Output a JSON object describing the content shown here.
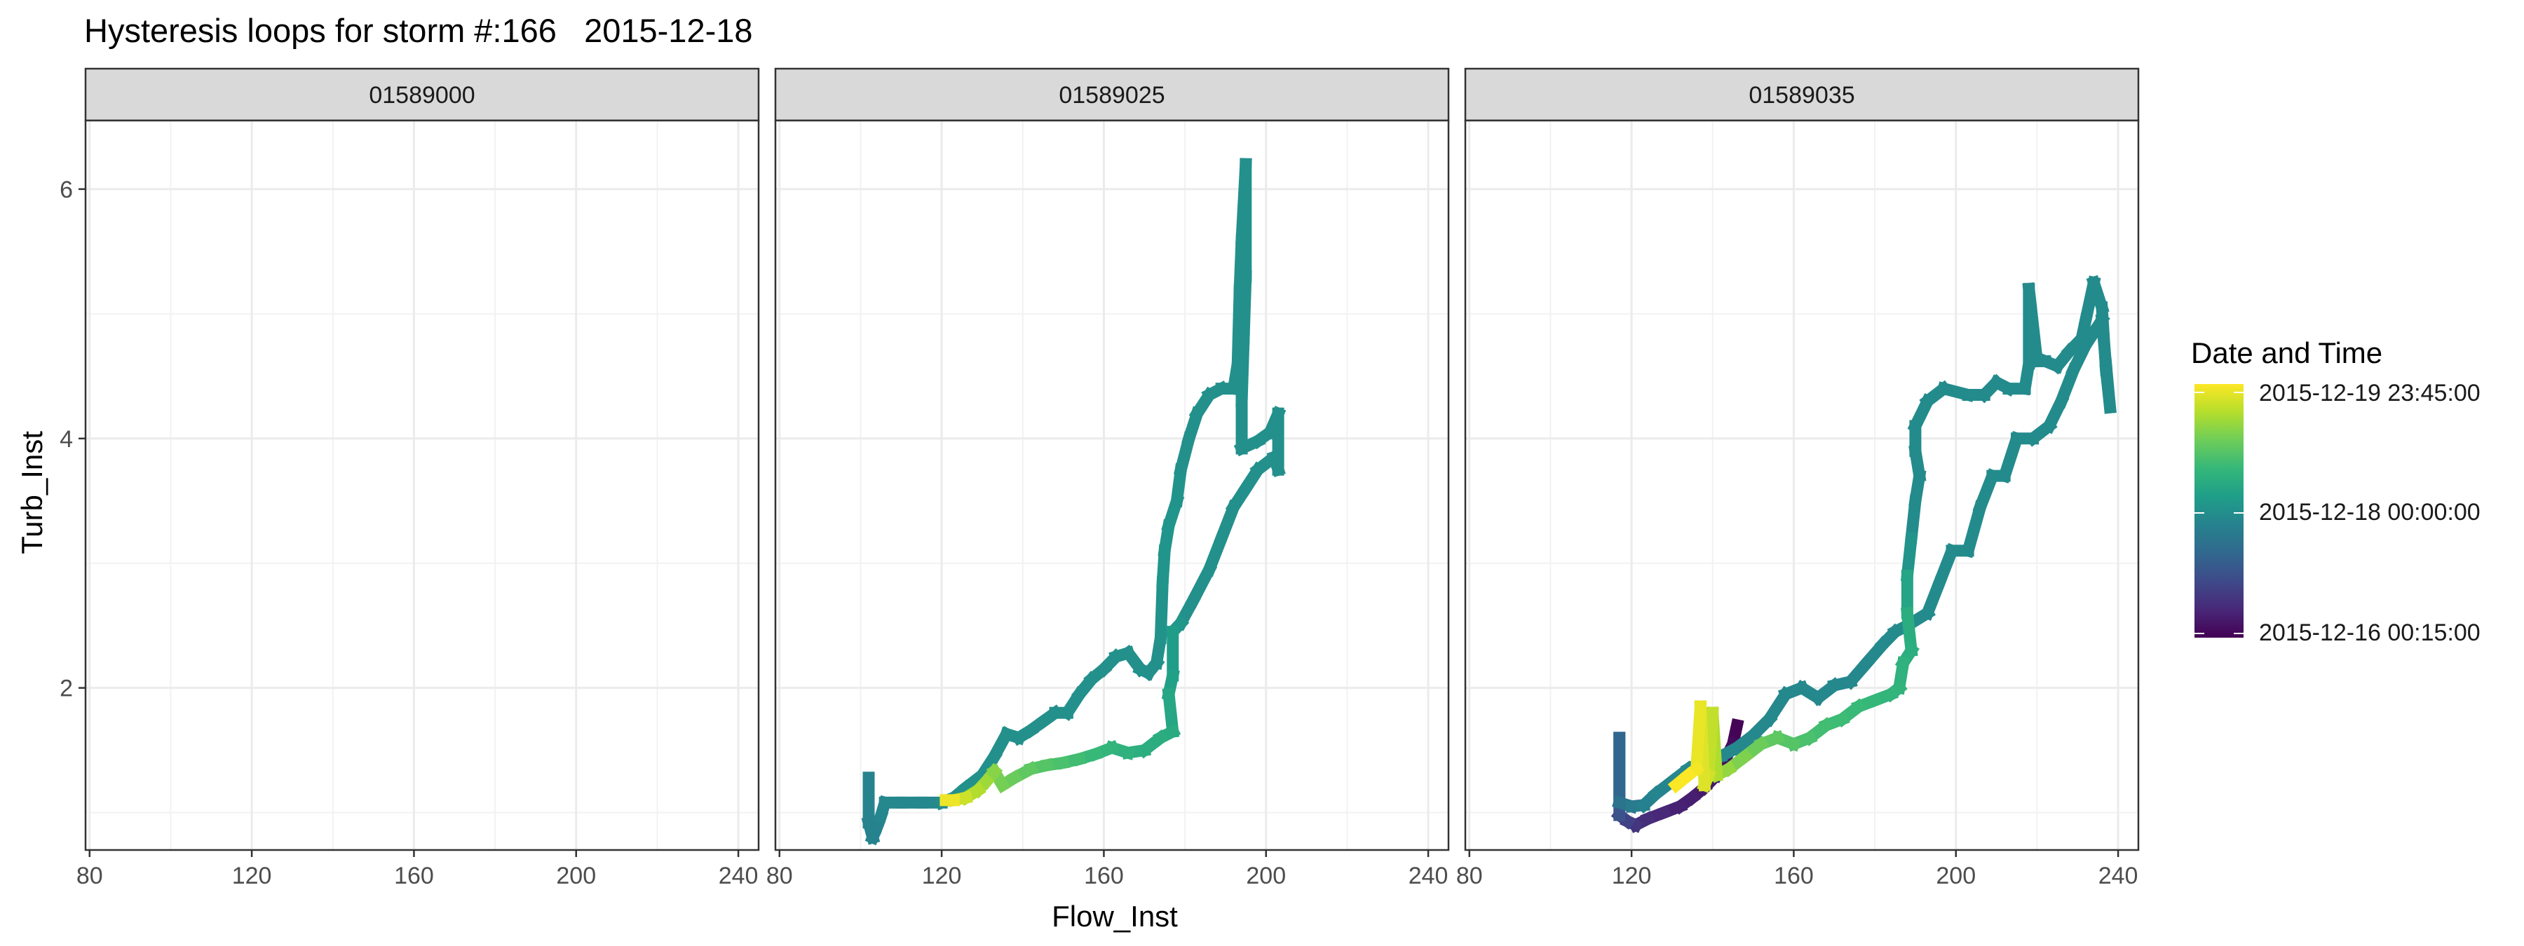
{
  "chart_data": {
    "type": "line",
    "title": "Hysteresis loops for storm #:166   2015-12-18",
    "xlabel": "Flow_Inst",
    "ylabel": "Turb_Inst",
    "xlim": [
      79,
      245
    ],
    "ylim": [
      0.7,
      6.55
    ],
    "xticks": [
      80,
      120,
      160,
      200,
      240
    ],
    "yticks": [
      2,
      4,
      6
    ],
    "grid": true,
    "facets": [
      "01589000",
      "01589025",
      "01589035"
    ],
    "legend": {
      "title": "Date and Time",
      "position": "right",
      "labels": [
        "2015-12-19 23:45:00",
        "2015-12-18 00:00:00",
        "2015-12-16 00:15:00"
      ],
      "colors": [
        "#FDE725",
        "#B4DE2C",
        "#6DCD59",
        "#35B779",
        "#1F9E89",
        "#26828E",
        "#31688E",
        "#3E4A89",
        "#482878",
        "#440154"
      ]
    },
    "series": [
      {
        "facet": "01589000",
        "points": []
      },
      {
        "facet": "01589025",
        "points": [
          [
            102,
            1.28,
            0.45
          ],
          [
            102,
            0.92,
            0.45
          ],
          [
            103,
            0.8,
            0.45
          ],
          [
            104,
            0.88,
            0.45
          ],
          [
            105,
            0.97,
            0.45
          ],
          [
            106,
            1.08,
            0.47
          ],
          [
            110,
            1.08,
            0.47
          ],
          [
            115,
            1.08,
            0.47
          ],
          [
            120,
            1.08,
            0.47
          ],
          [
            123,
            1.12,
            0.5
          ],
          [
            126,
            1.2,
            0.5
          ],
          [
            130,
            1.3,
            0.5
          ],
          [
            133,
            1.45,
            0.5
          ],
          [
            136,
            1.63,
            0.5
          ],
          [
            139,
            1.6,
            0.5
          ],
          [
            142,
            1.66,
            0.5
          ],
          [
            145,
            1.73,
            0.5
          ],
          [
            148,
            1.8,
            0.5
          ],
          [
            151,
            1.8,
            0.5
          ],
          [
            154,
            1.95,
            0.5
          ],
          [
            157,
            2.07,
            0.5
          ],
          [
            160,
            2.15,
            0.5
          ],
          [
            163,
            2.25,
            0.5
          ],
          [
            166,
            2.28,
            0.5
          ],
          [
            169,
            2.15,
            0.5
          ],
          [
            171,
            2.12,
            0.5
          ],
          [
            173,
            2.2,
            0.5
          ],
          [
            174,
            2.4,
            0.5
          ],
          [
            174.5,
            2.85,
            0.52
          ],
          [
            175,
            3.1,
            0.52
          ],
          [
            176,
            3.3,
            0.52
          ],
          [
            178,
            3.5,
            0.52
          ],
          [
            179,
            3.75,
            0.5
          ],
          [
            181,
            4.0,
            0.5
          ],
          [
            183,
            4.2,
            0.5
          ],
          [
            186,
            4.35,
            0.5
          ],
          [
            189,
            4.4,
            0.5
          ],
          [
            192,
            4.4,
            0.5
          ],
          [
            193,
            4.6,
            0.5
          ],
          [
            193.5,
            5.2,
            0.5
          ],
          [
            194,
            5.6,
            0.5
          ],
          [
            195,
            6.2,
            0.5
          ],
          [
            195,
            5.3,
            0.5
          ],
          [
            194.5,
            4.8,
            0.5
          ],
          [
            194,
            4.3,
            0.5
          ],
          [
            194,
            3.92,
            0.5
          ],
          [
            198,
            3.98,
            0.5
          ],
          [
            201,
            4.05,
            0.5
          ],
          [
            203,
            4.2,
            0.5
          ],
          [
            203,
            3.75,
            0.5
          ],
          [
            202,
            3.85,
            0.5
          ],
          [
            198,
            3.75,
            0.5
          ],
          [
            195,
            3.6,
            0.5
          ],
          [
            192,
            3.45,
            0.5
          ],
          [
            189,
            3.2,
            0.5
          ],
          [
            186,
            2.95,
            0.5
          ],
          [
            182,
            2.7,
            0.5
          ],
          [
            179,
            2.52,
            0.5
          ],
          [
            177,
            2.45,
            0.55
          ],
          [
            177,
            2.1,
            0.55
          ],
          [
            176,
            1.95,
            0.58
          ],
          [
            177,
            1.65,
            0.6
          ],
          [
            174,
            1.6,
            0.62
          ],
          [
            170,
            1.5,
            0.62
          ],
          [
            166,
            1.48,
            0.63
          ],
          [
            162,
            1.52,
            0.65
          ],
          [
            158,
            1.47,
            0.66
          ],
          [
            154,
            1.43,
            0.68
          ],
          [
            150,
            1.4,
            0.7
          ],
          [
            146,
            1.38,
            0.72
          ],
          [
            142,
            1.35,
            0.74
          ],
          [
            138,
            1.28,
            0.76
          ],
          [
            135,
            1.22,
            0.78
          ],
          [
            133,
            1.33,
            0.8
          ],
          [
            131,
            1.25,
            0.84
          ],
          [
            129,
            1.18,
            0.87
          ],
          [
            126,
            1.12,
            0.9
          ],
          [
            123,
            1.1,
            0.95
          ],
          [
            121,
            1.1,
            1.0
          ]
        ]
      },
      {
        "facet": "01589035",
        "points": [
          [
            146,
            1.7,
            0.0
          ],
          [
            145,
            1.55,
            0.02
          ],
          [
            143,
            1.42,
            0.04
          ],
          [
            141,
            1.3,
            0.06
          ],
          [
            138,
            1.2,
            0.07
          ],
          [
            135,
            1.12,
            0.08
          ],
          [
            132,
            1.05,
            0.09
          ],
          [
            128,
            1.0,
            0.1
          ],
          [
            124,
            0.95,
            0.12
          ],
          [
            121,
            0.9,
            0.14
          ],
          [
            119,
            0.93,
            0.17
          ],
          [
            117,
            0.98,
            0.22
          ],
          [
            117,
            1.6,
            0.3
          ],
          [
            117,
            1.08,
            0.36
          ],
          [
            120,
            1.05,
            0.4
          ],
          [
            123,
            1.06,
            0.43
          ],
          [
            126,
            1.15,
            0.45
          ],
          [
            130,
            1.25,
            0.46
          ],
          [
            134,
            1.35,
            0.47
          ],
          [
            138,
            1.42,
            0.47
          ],
          [
            142,
            1.45,
            0.47
          ],
          [
            146,
            1.52,
            0.47
          ],
          [
            150,
            1.62,
            0.47
          ],
          [
            154,
            1.75,
            0.47
          ],
          [
            158,
            1.95,
            0.47
          ],
          [
            162,
            2.0,
            0.47
          ],
          [
            166,
            1.92,
            0.47
          ],
          [
            170,
            2.02,
            0.47
          ],
          [
            174,
            2.05,
            0.47
          ],
          [
            178,
            2.2,
            0.47
          ],
          [
            182,
            2.35,
            0.47
          ],
          [
            185,
            2.45,
            0.48
          ],
          [
            188,
            2.5,
            0.48
          ],
          [
            193,
            2.6,
            0.48
          ],
          [
            196,
            2.85,
            0.48
          ],
          [
            199,
            3.1,
            0.48
          ],
          [
            203,
            3.1,
            0.48
          ],
          [
            206,
            3.45,
            0.48
          ],
          [
            209,
            3.7,
            0.48
          ],
          [
            212,
            3.7,
            0.48
          ],
          [
            215,
            4.0,
            0.48
          ],
          [
            219,
            4.0,
            0.48
          ],
          [
            223,
            4.1,
            0.48
          ],
          [
            226,
            4.3,
            0.48
          ],
          [
            229,
            4.55,
            0.48
          ],
          [
            232,
            4.75,
            0.48
          ],
          [
            234,
            4.85,
            0.48
          ],
          [
            236,
            4.95,
            0.48
          ],
          [
            237,
            4.6,
            0.48
          ],
          [
            238,
            4.25,
            0.48
          ],
          [
            237,
            4.55,
            0.48
          ],
          [
            236,
            5.05,
            0.48
          ],
          [
            234,
            5.25,
            0.48
          ],
          [
            232,
            4.95,
            0.48
          ],
          [
            231,
            4.8,
            0.48
          ],
          [
            228,
            4.7,
            0.48
          ],
          [
            225,
            4.58,
            0.48
          ],
          [
            222,
            4.62,
            0.48
          ],
          [
            220,
            4.62,
            0.48
          ],
          [
            218,
            5.2,
            0.48
          ],
          [
            218,
            4.6,
            0.48
          ],
          [
            217,
            4.4,
            0.48
          ],
          [
            213,
            4.4,
            0.48
          ],
          [
            210,
            4.45,
            0.48
          ],
          [
            207,
            4.35,
            0.48
          ],
          [
            203,
            4.35,
            0.48
          ],
          [
            197,
            4.4,
            0.48
          ],
          [
            193,
            4.3,
            0.48
          ],
          [
            190,
            4.1,
            0.48
          ],
          [
            190,
            3.9,
            0.48
          ],
          [
            191,
            3.7,
            0.48
          ],
          [
            190,
            3.5,
            0.48
          ],
          [
            189,
            3.2,
            0.48
          ],
          [
            188,
            2.9,
            0.55
          ],
          [
            188,
            2.6,
            0.62
          ],
          [
            189,
            2.3,
            0.62
          ],
          [
            187,
            2.2,
            0.63
          ],
          [
            186,
            2.0,
            0.65
          ],
          [
            184,
            1.95,
            0.65
          ],
          [
            180,
            1.9,
            0.66
          ],
          [
            176,
            1.85,
            0.67
          ],
          [
            172,
            1.75,
            0.68
          ],
          [
            168,
            1.7,
            0.69
          ],
          [
            164,
            1.6,
            0.7
          ],
          [
            160,
            1.55,
            0.72
          ],
          [
            156,
            1.6,
            0.74
          ],
          [
            152,
            1.55,
            0.76
          ],
          [
            148,
            1.45,
            0.79
          ],
          [
            144,
            1.35,
            0.82
          ],
          [
            141,
            1.3,
            0.86
          ],
          [
            140,
            1.8,
            0.9
          ],
          [
            139,
            1.3,
            0.92
          ],
          [
            138,
            1.22,
            0.94
          ],
          [
            137,
            1.85,
            0.96
          ],
          [
            136,
            1.35,
            0.98
          ],
          [
            134,
            1.3,
            0.99
          ],
          [
            131,
            1.22,
            1.0
          ]
        ]
      }
    ]
  }
}
